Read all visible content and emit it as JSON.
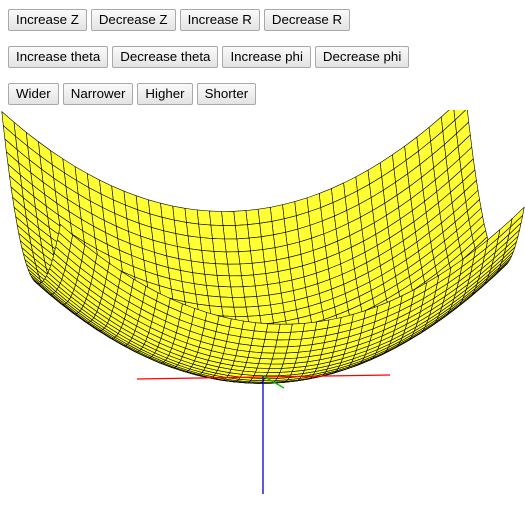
{
  "controls": {
    "row1": [
      "Increase Z",
      "Decrease Z",
      "Increase R",
      "Decrease R"
    ],
    "row2": [
      "Increase theta",
      "Decrease theta",
      "Increase phi",
      "Decrease phi"
    ],
    "row3": [
      "Wider",
      "Narrower",
      "Higher",
      "Shorter"
    ]
  },
  "scene": {
    "surface_fill": "#ffff33",
    "mesh_line": "#000000",
    "axis_x_color": "#ff0000",
    "axis_y_color": "#00c000",
    "axis_z_color": "#0000cc"
  }
}
